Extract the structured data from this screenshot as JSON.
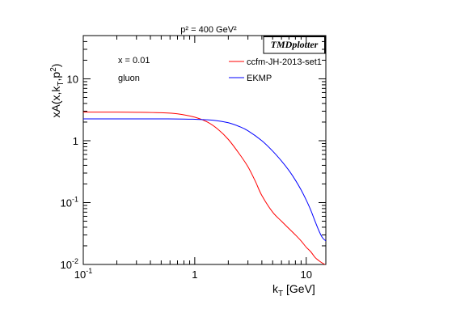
{
  "chart_data": {
    "type": "line",
    "title": "p² = 400 GeV²",
    "badge": "TMDplotter",
    "xlabel": "kT [GeV]",
    "ylabel": "xA(x,kT,p²)",
    "xscale": "log",
    "yscale": "log",
    "xlim": [
      0.1,
      15
    ],
    "ylim": [
      0.01,
      50
    ],
    "x_ticks": [
      {
        "value": 0.1,
        "label": "10",
        "exp": "-1"
      },
      {
        "value": 1,
        "label": "1",
        "exp": ""
      },
      {
        "value": 10,
        "label": "10",
        "exp": ""
      }
    ],
    "y_ticks": [
      {
        "value": 0.01,
        "label": "10",
        "exp": "-2"
      },
      {
        "value": 0.1,
        "label": "10",
        "exp": "-1"
      },
      {
        "value": 1,
        "label": "1",
        "exp": ""
      },
      {
        "value": 10,
        "label": "10",
        "exp": ""
      }
    ],
    "annotations": [
      "x = 0.01",
      "gluon"
    ],
    "legend_position": "top-right",
    "grid": false,
    "series": [
      {
        "name": "ccfm-JH-2013-set1",
        "color": "#ff0000",
        "x": [
          0.1,
          0.2,
          0.3,
          0.5,
          0.7,
          1.0,
          1.3,
          1.6,
          2.0,
          2.5,
          3.0,
          3.5,
          4.0,
          5.0,
          6.0,
          7.0,
          8.0,
          9.0,
          10.0,
          11.0,
          12.0,
          13.0,
          14.0,
          15.0
        ],
        "y": [
          2.9,
          2.9,
          2.88,
          2.83,
          2.72,
          2.4,
          2.0,
          1.55,
          1.05,
          0.62,
          0.38,
          0.22,
          0.13,
          0.07,
          0.05,
          0.038,
          0.03,
          0.024,
          0.019,
          0.016,
          0.013,
          0.0115,
          0.0105,
          0.0098
        ]
      },
      {
        "name": "EKMP",
        "color": "#0000ff",
        "x": [
          0.1,
          0.3,
          0.5,
          0.8,
          1.0,
          1.3,
          1.6,
          2.0,
          2.5,
          3.0,
          4.0,
          5.0,
          6.0,
          7.0,
          8.0,
          9.0,
          10.0,
          11.0,
          12.0,
          13.0,
          14.0,
          15.0
        ],
        "y": [
          2.25,
          2.25,
          2.25,
          2.24,
          2.22,
          2.18,
          2.1,
          1.95,
          1.7,
          1.45,
          1.0,
          0.68,
          0.47,
          0.33,
          0.23,
          0.16,
          0.11,
          0.075,
          0.05,
          0.035,
          0.027,
          0.024
        ]
      }
    ]
  }
}
